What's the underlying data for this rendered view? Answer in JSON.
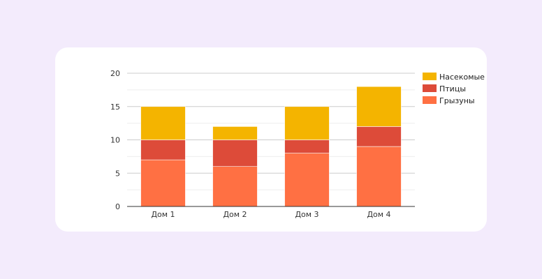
{
  "chart_data": {
    "type": "bar",
    "stacked": true,
    "categories": [
      "Дом 1",
      "Дом 2",
      "Дом 3",
      "Дом 4"
    ],
    "series": [
      {
        "name": "Грызуны",
        "values": [
          7,
          6,
          8,
          9
        ],
        "color": "#ff7043"
      },
      {
        "name": "Птицы",
        "values": [
          3,
          4,
          2,
          3
        ],
        "color": "#dd4b39"
      },
      {
        "name": "Насекомые",
        "values": [
          5,
          2,
          5,
          6
        ],
        "color": "#f4b400"
      }
    ],
    "legend_order": [
      "Насекомые",
      "Птицы",
      "Грызуны"
    ],
    "ylim": [
      0,
      20
    ],
    "yticks": [
      0,
      5,
      10,
      15,
      20
    ],
    "grid": true,
    "legend_position": "right",
    "title": "",
    "xlabel": "",
    "ylabel": ""
  },
  "colors": {
    "page_background": "#f3ebfc",
    "card_background": "#ffffff",
    "grid_major": "#cccccc",
    "grid_minor": "#eeeeee",
    "axis": "#333333"
  }
}
